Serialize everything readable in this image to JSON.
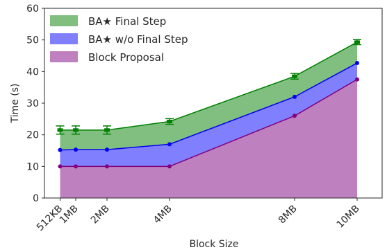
{
  "chart_data": {
    "type": "area",
    "stacked": true,
    "x": [
      0.5,
      1,
      2,
      4,
      8,
      10
    ],
    "categories": [
      "512KB",
      "1MB",
      "2MB",
      "4MB",
      "8MB",
      "10MB"
    ],
    "xlabel": "Block Size",
    "ylabel": "Time (s)",
    "ylim": [
      0,
      60
    ],
    "yticks": [
      0,
      10,
      20,
      30,
      40,
      50,
      60
    ],
    "grid": false,
    "legend_position": "top-left",
    "series": [
      {
        "name": "Block Proposal",
        "values": [
          10.0,
          10.0,
          10.0,
          10.0,
          26.0,
          37.5
        ],
        "color": "#800080",
        "fill": "#bf80bf",
        "marker": "circle"
      },
      {
        "name": "BA★ w/o Final Step",
        "values": [
          15.2,
          15.3,
          15.3,
          17.0,
          32.0,
          42.7
        ],
        "color": "#0000ee",
        "fill": "#8080ff",
        "marker": "circle"
      },
      {
        "name": "BA★ Final Step",
        "values": [
          21.5,
          21.5,
          21.5,
          24.2,
          38.5,
          49.3
        ],
        "errors": [
          1.3,
          1.3,
          1.3,
          0.9,
          0.9,
          0.8
        ],
        "color": "#008000",
        "fill": "#80bf80",
        "marker": "errorbar"
      }
    ]
  }
}
